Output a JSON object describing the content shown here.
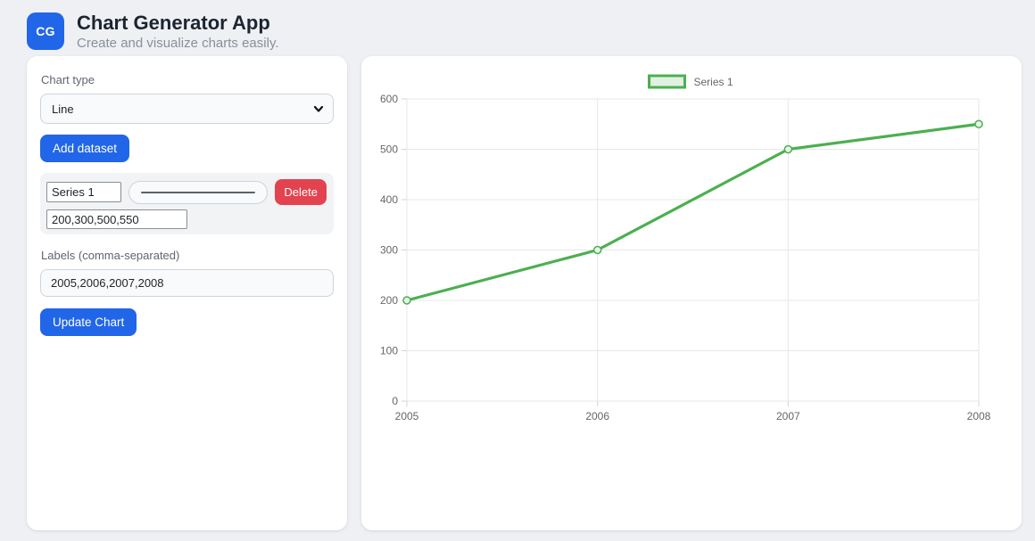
{
  "app": {
    "logo_text": "CG",
    "title": "Chart Generator App",
    "subtitle": "Create and visualize charts easily."
  },
  "sidebar": {
    "chart_type_label": "Chart type",
    "chart_type_value": "Line",
    "add_dataset_label": "Add dataset",
    "dataset": {
      "name_value": "Series 1",
      "values_value": "200,300,500,550",
      "delete_label": "Delete"
    },
    "labels_label": "Labels (comma-separated)",
    "labels_value": "2005,2006,2007,2008",
    "update_chart_label": "Update Chart"
  },
  "chart_data": {
    "type": "line",
    "categories": [
      "2005",
      "2006",
      "2007",
      "2008"
    ],
    "series": [
      {
        "name": "Series 1",
        "values": [
          200,
          300,
          500,
          550
        ]
      }
    ],
    "title": "",
    "xlabel": "",
    "ylabel": "",
    "ylim": [
      0,
      600
    ],
    "ytick_step": 100,
    "grid": true,
    "legend_position": "top"
  },
  "colors": {
    "primary": "#2166e8",
    "danger": "#e2434e",
    "page-bg": "#eef0f4",
    "card-bg": "#ffffff",
    "series-line": "#4caf50",
    "series-point-fill": "#e9f4e9",
    "legend-fill": "#e3f1e3",
    "grid-line": "#e7e7e7",
    "tick-mark": "#d4d4d4",
    "tick-text": "#666666"
  }
}
